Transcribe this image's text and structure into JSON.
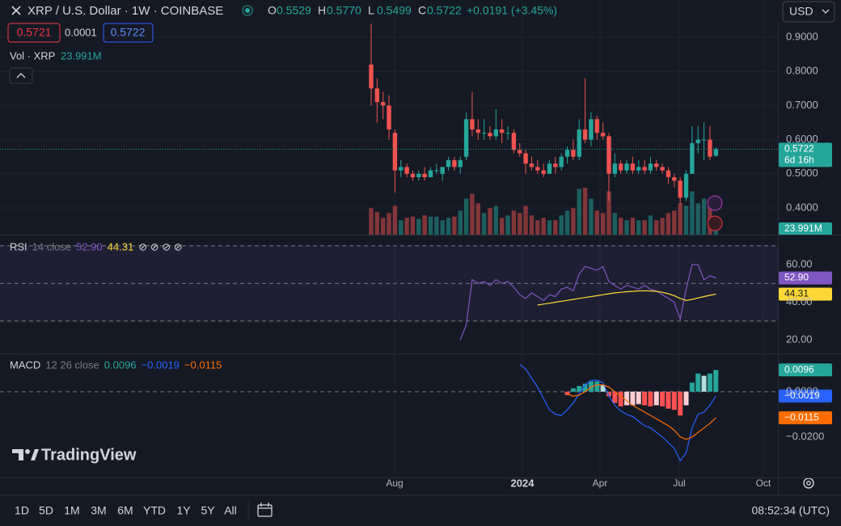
{
  "header": {
    "symbol": "XRP / U.S. Dollar · 1W · COINBASE",
    "ohlc": [
      {
        "key": "O",
        "value": "0.5529"
      },
      {
        "key": "H",
        "value": "0.5770"
      },
      {
        "key": "L",
        "value": "0.5499"
      },
      {
        "key": "C",
        "value": "0.5722"
      }
    ],
    "change": "+0.0191 (+3.45%)",
    "bid": "0.5721",
    "spread": "0.0001",
    "ask": "0.5722",
    "currency": "USD",
    "countdown": "6d 16h",
    "volume_label": "Vol · XRP",
    "volume_value": "23.991M"
  },
  "chart_data": [
    {
      "type": "candlestick",
      "grid": true,
      "up_color": "#26a69a",
      "down_color": "#ef5350",
      "x": [
        0,
        1,
        2,
        3,
        4,
        5,
        6,
        7,
        8,
        9,
        10,
        11,
        12,
        13,
        14,
        15,
        16,
        17,
        18,
        19,
        20,
        21,
        22,
        23,
        24,
        25,
        26,
        27,
        28,
        29,
        30,
        31,
        32,
        33,
        34,
        35,
        36,
        37,
        38,
        39,
        40,
        41,
        42,
        43,
        44,
        45,
        46,
        47,
        48,
        49,
        50,
        51,
        52,
        53,
        54,
        55,
        56,
        57,
        58
      ],
      "xlim": [
        -62.45,
        68.44
      ],
      "xticks": [
        {
          "value": 3.95,
          "label": "Aug"
        },
        {
          "value": 25.44,
          "label": "2024"
        },
        {
          "value": 38.5,
          "label": "Apr"
        },
        {
          "value": 51.84,
          "label": "Jul"
        },
        {
          "value": 65.98,
          "label": "Oct"
        }
      ],
      "ylim": [
        0.3218,
        1.009
      ],
      "yticks": [
        {
          "value": 0.9,
          "label": "0.9000"
        },
        {
          "value": 0.8,
          "label": "0.8000"
        },
        {
          "value": 0.7,
          "label": "0.7000"
        },
        {
          "value": 0.6,
          "label": "0.6000"
        },
        {
          "value": 0.5,
          "label": "0.5000"
        },
        {
          "value": 0.4,
          "label": "0.4000"
        }
      ],
      "open": [
        0.82,
        0.75,
        0.71,
        0.7,
        0.62,
        0.51,
        0.52,
        0.5,
        0.49,
        0.5,
        0.49,
        0.51,
        0.5,
        0.52,
        0.54,
        0.52,
        0.55,
        0.66,
        0.63,
        0.62,
        0.62,
        0.61,
        0.63,
        0.62,
        0.62,
        0.57,
        0.56,
        0.53,
        0.52,
        0.51,
        0.5,
        0.53,
        0.52,
        0.55,
        0.57,
        0.55,
        0.63,
        0.6,
        0.66,
        0.62,
        0.61,
        0.5,
        0.53,
        0.51,
        0.53,
        0.51,
        0.52,
        0.51,
        0.53,
        0.52,
        0.51,
        0.49,
        0.48,
        0.43,
        0.5,
        0.59,
        0.6,
        0.6,
        0.5529
      ],
      "high": [
        0.94,
        0.78,
        0.74,
        0.73,
        0.63,
        0.54,
        0.53,
        0.51,
        0.51,
        0.52,
        0.52,
        0.53,
        0.52,
        0.55,
        0.55,
        0.55,
        0.68,
        0.74,
        0.66,
        0.66,
        0.64,
        0.69,
        0.66,
        0.64,
        0.63,
        0.59,
        0.57,
        0.55,
        0.54,
        0.53,
        0.54,
        0.55,
        0.56,
        0.58,
        0.6,
        0.66,
        0.78,
        0.68,
        0.67,
        0.65,
        0.62,
        0.56,
        0.54,
        0.54,
        0.55,
        0.54,
        0.54,
        0.55,
        0.54,
        0.53,
        0.52,
        0.5,
        0.49,
        0.51,
        0.64,
        0.64,
        0.65,
        0.64,
        0.577
      ],
      "low": [
        0.7,
        0.65,
        0.66,
        0.6,
        0.445,
        0.49,
        0.49,
        0.48,
        0.48,
        0.48,
        0.49,
        0.5,
        0.48,
        0.51,
        0.51,
        0.5,
        0.54,
        0.61,
        0.6,
        0.6,
        0.6,
        0.6,
        0.59,
        0.6,
        0.56,
        0.55,
        0.5,
        0.51,
        0.5,
        0.49,
        0.5,
        0.5,
        0.51,
        0.53,
        0.54,
        0.54,
        0.59,
        0.58,
        0.6,
        0.6,
        0.42,
        0.49,
        0.5,
        0.5,
        0.5,
        0.5,
        0.5,
        0.5,
        0.51,
        0.5,
        0.47,
        0.46,
        0.41,
        0.42,
        0.5,
        0.56,
        0.54,
        0.54,
        0.5499
      ],
      "close": [
        0.75,
        0.71,
        0.7,
        0.63,
        0.51,
        0.52,
        0.5,
        0.49,
        0.5,
        0.49,
        0.51,
        0.51,
        0.52,
        0.54,
        0.52,
        0.54,
        0.66,
        0.63,
        0.62,
        0.62,
        0.61,
        0.63,
        0.62,
        0.62,
        0.57,
        0.56,
        0.53,
        0.52,
        0.51,
        0.5,
        0.53,
        0.52,
        0.55,
        0.57,
        0.55,
        0.63,
        0.6,
        0.66,
        0.62,
        0.61,
        0.5,
        0.53,
        0.51,
        0.53,
        0.51,
        0.52,
        0.51,
        0.53,
        0.52,
        0.51,
        0.49,
        0.48,
        0.43,
        0.5,
        0.59,
        0.6,
        0.6,
        0.55,
        0.5722
      ],
      "volume": [
        110,
        95,
        70,
        90,
        120,
        60,
        70,
        75,
        65,
        80,
        75,
        75,
        60,
        70,
        75,
        100,
        150,
        170,
        130,
        90,
        110,
        120,
        70,
        80,
        100,
        90,
        120,
        80,
        60,
        70,
        60,
        60,
        80,
        100,
        110,
        190,
        195,
        150,
        100,
        90,
        180,
        90,
        70,
        60,
        70,
        60,
        60,
        80,
        60,
        70,
        90,
        100,
        130,
        120,
        180,
        130,
        150,
        120,
        23.991
      ]
    },
    {
      "type": "line",
      "title": "RSI",
      "params": "14 close",
      "icons": "⊘ ⊘ ⊘ ⊘",
      "levels": [
        70,
        50,
        30
      ],
      "band_color": "#7e57c2",
      "x": [
        0,
        1,
        2,
        3,
        4,
        5,
        6,
        7,
        8,
        9,
        10,
        11,
        12,
        13,
        14,
        15,
        16,
        17,
        18,
        19,
        20,
        21,
        22,
        23,
        24,
        25,
        26,
        27,
        28,
        29,
        30,
        31,
        32,
        33,
        34,
        35,
        36,
        37,
        38,
        39,
        40,
        41,
        42,
        43,
        44,
        45,
        46,
        47,
        48,
        49,
        50,
        51,
        52,
        53,
        54,
        55,
        56,
        57,
        58
      ],
      "ylim": [
        13.12,
        75.05
      ],
      "yticks": [
        {
          "value": 60,
          "label": "60.00"
        },
        {
          "value": 40,
          "label": "40.00"
        },
        {
          "value": 20,
          "label": "20.00"
        }
      ],
      "series": [
        {
          "name": "RSI",
          "color": "#7e57c2",
          "last_label": "52.90",
          "values": [
            null,
            null,
            null,
            null,
            null,
            null,
            null,
            null,
            null,
            null,
            null,
            null,
            null,
            null,
            null,
            20,
            28,
            52,
            50,
            51,
            49,
            52,
            50,
            51,
            48,
            44,
            42,
            45,
            43,
            41,
            44,
            43,
            47,
            48,
            46,
            55,
            59,
            58,
            57,
            59,
            51,
            49,
            47,
            49,
            48,
            47,
            49,
            47,
            46,
            44,
            42,
            40,
            31,
            47,
            60,
            60,
            52,
            54,
            52.9
          ]
        },
        {
          "name": "RSI MA",
          "color": "#fdd835",
          "last_label": "44.31",
          "values": [
            null,
            null,
            null,
            null,
            null,
            null,
            null,
            null,
            null,
            null,
            null,
            null,
            null,
            null,
            null,
            null,
            null,
            null,
            null,
            null,
            null,
            null,
            null,
            null,
            null,
            null,
            null,
            null,
            38.5,
            39,
            39.5,
            40,
            40.5,
            41,
            41.5,
            42,
            42.5,
            43,
            43.5,
            44,
            44.5,
            45,
            45.3,
            45.6,
            45.8,
            46,
            46.1,
            46,
            45.8,
            45.3,
            44.5,
            43.5,
            42,
            41,
            41.5,
            42.3,
            43,
            43.7,
            44.31
          ]
        }
      ]
    },
    {
      "type": "macd",
      "title": "MACD",
      "params": "12 26 close",
      "x": [
        0,
        1,
        2,
        3,
        4,
        5,
        6,
        7,
        8,
        9,
        10,
        11,
        12,
        13,
        14,
        15,
        16,
        17,
        18,
        19,
        20,
        21,
        22,
        23,
        24,
        25,
        26,
        27,
        28,
        29,
        30,
        31,
        32,
        33,
        34,
        35,
        36,
        37,
        38,
        39,
        40,
        41,
        42,
        43,
        44,
        45,
        46,
        47,
        48,
        49,
        50,
        51,
        52,
        53,
        54,
        55,
        56,
        57,
        58
      ],
      "ylim": [
        -0.03786,
        0.01643
      ],
      "yticks": [
        {
          "value": 0,
          "label": "0.0000"
        },
        {
          "value": -0.02,
          "label": "−0.0200"
        }
      ],
      "histogram": {
        "name": "Histogram",
        "colors": [
          "#26a69a",
          "#b2dfdb",
          "#ffcdd2",
          "#ff5252"
        ],
        "last_label": "0.0096",
        "values": [
          null,
          null,
          null,
          null,
          null,
          null,
          null,
          null,
          null,
          null,
          null,
          null,
          null,
          null,
          null,
          null,
          null,
          null,
          null,
          null,
          null,
          null,
          null,
          null,
          null,
          null,
          null,
          null,
          null,
          null,
          null,
          null,
          null,
          -0.0015,
          0.0015,
          0.0025,
          0.0035,
          0.0045,
          0.0045,
          0.003,
          -0.002,
          -0.005,
          -0.0065,
          -0.006,
          -0.006,
          -0.0055,
          -0.006,
          -0.0065,
          -0.006,
          -0.0065,
          -0.0075,
          -0.008,
          -0.0105,
          -0.006,
          0.004,
          0.008,
          0.007,
          0.008,
          0.0096
        ]
      },
      "series": [
        {
          "name": "MACD",
          "color": "#2962ff",
          "last_label": "−0.0019",
          "values": [
            null,
            null,
            null,
            null,
            null,
            null,
            null,
            null,
            null,
            null,
            null,
            null,
            null,
            null,
            null,
            null,
            null,
            null,
            null,
            null,
            null,
            null,
            null,
            null,
            null,
            0.012,
            0.01,
            0.006,
            0.002,
            -0.003,
            -0.008,
            -0.01,
            -0.0105,
            -0.008,
            -0.005,
            -0.001,
            0.003,
            0.005,
            0.005,
            0.004,
            -0.002,
            -0.006,
            -0.0085,
            -0.01,
            -0.011,
            -0.013,
            -0.015,
            -0.016,
            -0.018,
            -0.02,
            -0.0225,
            -0.025,
            -0.0305,
            -0.027,
            -0.016,
            -0.01,
            -0.009,
            -0.006,
            -0.0019
          ]
        },
        {
          "name": "Signal",
          "color": "#ff6d00",
          "last_label": "−0.0115",
          "values": [
            null,
            null,
            null,
            null,
            null,
            null,
            null,
            null,
            null,
            null,
            null,
            null,
            null,
            null,
            null,
            null,
            null,
            null,
            null,
            null,
            null,
            null,
            null,
            null,
            null,
            null,
            null,
            null,
            null,
            null,
            null,
            null,
            null,
            -0.001,
            -0.002,
            -0.0015,
            0,
            0.002,
            0.003,
            0.003,
            0.002,
            0,
            -0.002,
            -0.004,
            -0.006,
            -0.0075,
            -0.009,
            -0.0105,
            -0.012,
            -0.0135,
            -0.015,
            -0.017,
            -0.02,
            -0.021,
            -0.02,
            -0.018,
            -0.016,
            -0.014,
            -0.0115
          ]
        }
      ]
    }
  ],
  "brand": "TradingView",
  "toolbar": {
    "ranges": [
      "1D",
      "5D",
      "1M",
      "3M",
      "6M",
      "YTD",
      "1Y",
      "5Y",
      "All"
    ],
    "time": "08:52:34 (UTC)"
  }
}
